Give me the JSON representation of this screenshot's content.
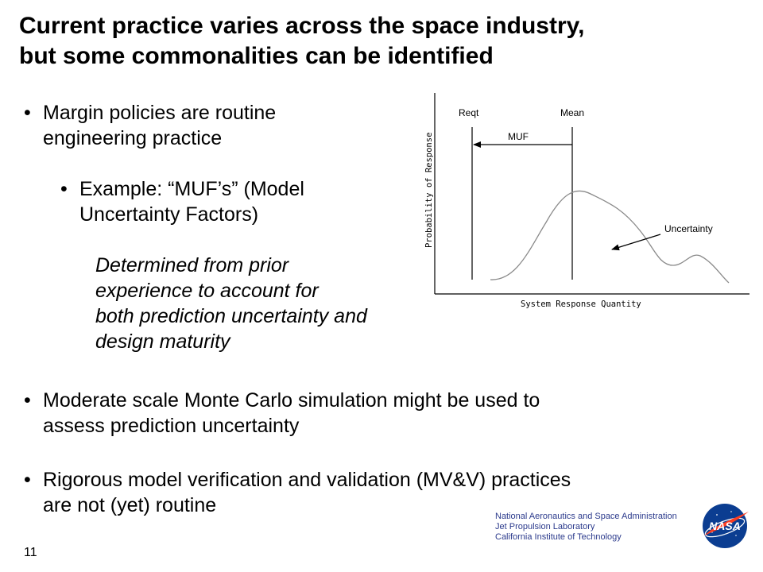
{
  "slide": {
    "title_line1": "Current practice varies across the space industry,",
    "title_line2": "but some commonalities can be identified",
    "bullets": {
      "b1_line1": "Margin policies are routine",
      "b1_line2": "engineering practice",
      "b2_line1": "Example: “MUF’s” (Model",
      "b2_line2": "Uncertainty Factors)",
      "detail_lines": [
        "Determined from prior",
        "experience to account for",
        "both prediction uncertainty and",
        "design maturity"
      ],
      "b3_line1": "Moderate scale Monte Carlo simulation might be used to",
      "b3_line2": "assess prediction uncertainty",
      "b4_line1": "Rigorous model verification and validation (MV&V) practices",
      "b4_line2": "are not (yet) routine"
    },
    "bullet_char": "•",
    "page_number": "11"
  },
  "diagram": {
    "label_reqt": "Reqt",
    "label_mean": "Mean",
    "label_muf": "MUF",
    "label_uncertainty": "Uncertainty",
    "y_axis_label": "Probability of Response",
    "x_axis_label": "System Response Quantity",
    "curve_color": "#8a8a8a"
  },
  "footer": {
    "line1": "National Aeronautics and Space Administration",
    "line2": "Jet Propulsion Laboratory",
    "line3": "California Institute of Technology",
    "logo_text": "NASA",
    "logo_colors": {
      "blue": "#0b3d91",
      "red": "#fc3d21"
    }
  }
}
